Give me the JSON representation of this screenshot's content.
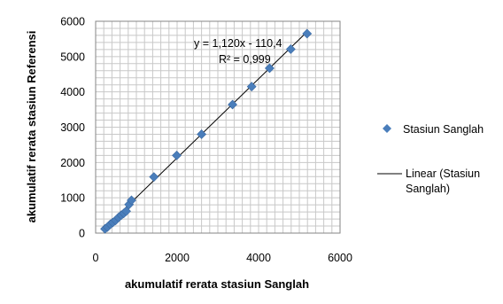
{
  "chart_data": {
    "type": "scatter",
    "title": "",
    "xlabel": "akumulatif rerata stasiun Sanglah",
    "ylabel": "akumulatif rerata stasiun Referensi",
    "xlim": [
      0,
      6000
    ],
    "ylim": [
      0,
      6000
    ],
    "x_ticks": [
      0,
      2000,
      4000,
      6000
    ],
    "y_ticks": [
      0,
      1000,
      2000,
      3000,
      4000,
      5000,
      6000
    ],
    "x_tick_labels": [
      "0",
      "2000",
      "4000",
      "6000"
    ],
    "y_tick_labels": [
      "0",
      "1000",
      "2000",
      "3000",
      "4000",
      "5000",
      "6000"
    ],
    "grid": true,
    "legend_position": "right",
    "marker_color": "#4a7ebb",
    "trendline_color": "#000000",
    "series": [
      {
        "name": "Stasiun Sanglah",
        "x": [
          230,
          290,
          360,
          420,
          490,
          560,
          630,
          690,
          750,
          820,
          880,
          1430,
          1990,
          2600,
          3360,
          3830,
          4270,
          4790,
          5190
        ],
        "y": [
          120,
          170,
          250,
          300,
          360,
          440,
          510,
          560,
          620,
          810,
          930,
          1590,
          2200,
          2800,
          3640,
          4150,
          4670,
          5210,
          5650
        ]
      }
    ],
    "trendline": {
      "name": "Linear (Stasiun Sanglah)",
      "slope": 1.12,
      "intercept": -110.4,
      "x_range": [
        230,
        5190
      ],
      "equation_label": "y = 1,120x - 110,4",
      "r2_label": "R² = 0,999"
    },
    "legend": [
      {
        "label": "Stasiun Sanglah",
        "kind": "marker"
      },
      {
        "label_lines": [
          "Linear (Stasiun",
          "Sanglah)"
        ],
        "kind": "line"
      }
    ]
  }
}
